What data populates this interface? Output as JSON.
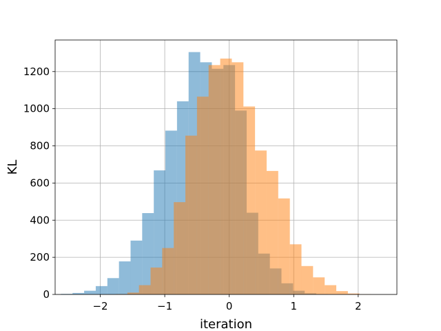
{
  "chart_data": {
    "type": "bar",
    "xlabel": "iteration",
    "ylabel": "KL",
    "xlim": [
      -2.7,
      2.6
    ],
    "ylim": [
      0,
      1370
    ],
    "grid": true,
    "x_ticks": [
      -2,
      -1,
      0,
      1,
      2
    ],
    "x_tick_labels": [
      "−2",
      "−1",
      "0",
      "1",
      "2"
    ],
    "y_ticks": [
      0,
      200,
      400,
      600,
      800,
      1000,
      1200
    ],
    "y_tick_labels": [
      "0",
      "200",
      "400",
      "600",
      "800",
      "1000",
      "1200"
    ],
    "series": [
      {
        "color": "#1f77b4",
        "opacity": 0.5,
        "bin_edges": [
          -2.61,
          -2.43,
          -2.25,
          -2.07,
          -1.89,
          -1.71,
          -1.53,
          -1.35,
          -1.17,
          -0.99,
          -0.81,
          -0.63,
          -0.45,
          -0.27,
          -0.09,
          0.09,
          0.27,
          0.45,
          0.63,
          0.81,
          0.99,
          1.17,
          1.35,
          1.53
        ],
        "counts": [
          3,
          8,
          20,
          45,
          88,
          178,
          290,
          438,
          668,
          882,
          1040,
          1305,
          1250,
          1215,
          1235,
          990,
          440,
          220,
          140,
          60,
          20,
          6,
          2
        ]
      },
      {
        "color": "#ff7f0e",
        "opacity": 0.5,
        "bin_edges": [
          -1.76,
          -1.58,
          -1.4,
          -1.22,
          -1.04,
          -0.86,
          -0.68,
          -0.5,
          -0.32,
          -0.14,
          0.04,
          0.22,
          0.4,
          0.58,
          0.76,
          0.94,
          1.12,
          1.3,
          1.48,
          1.66,
          1.84,
          2.02,
          2.2
        ],
        "counts": [
          2,
          10,
          50,
          145,
          250,
          497,
          855,
          1065,
          1235,
          1270,
          1250,
          1012,
          775,
          665,
          517,
          270,
          153,
          92,
          50,
          18,
          5,
          1
        ]
      }
    ]
  }
}
